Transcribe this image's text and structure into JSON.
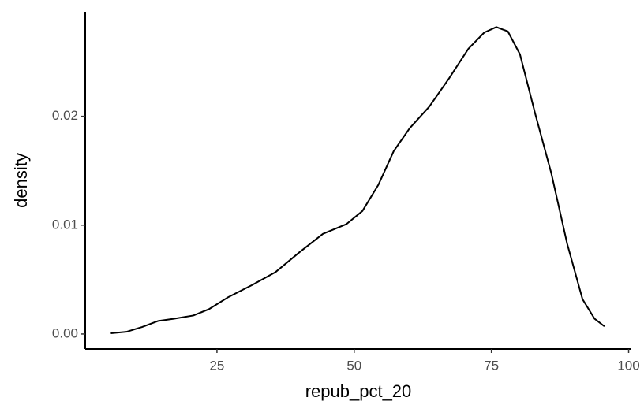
{
  "chart_data": {
    "type": "density",
    "x_label": "repub_pct_20",
    "y_label": "density",
    "x": [
      5.66,
      8.5,
      11.4,
      14.3,
      17.1,
      20.7,
      23.6,
      27.1,
      31.4,
      35.7,
      40.0,
      44.3,
      48.6,
      51.5,
      54.4,
      57.2,
      60.1,
      63.7,
      67.3,
      70.8,
      73.7,
      75.9,
      78.0,
      80.2,
      83.0,
      85.9,
      88.8,
      91.6,
      93.8,
      95.6
    ],
    "values": [
      7e-05,
      0.0002,
      0.00065,
      0.0012,
      0.0014,
      0.0017,
      0.0023,
      0.0034,
      0.0045,
      0.0057,
      0.0075,
      0.0092,
      0.0101,
      0.0113,
      0.0137,
      0.0168,
      0.0189,
      0.0209,
      0.0235,
      0.0262,
      0.0277,
      0.0282,
      0.0278,
      0.0257,
      0.0202,
      0.0148,
      0.0083,
      0.0032,
      0.0014,
      0.0007
    ],
    "color": "#000000",
    "xlim": [
      1.0,
      100.5
    ],
    "ylim": [
      -0.00138,
      0.0296
    ],
    "xticks": [
      25,
      50,
      75,
      100
    ],
    "yticks": [
      {
        "value": 0,
        "label": "0.00"
      },
      {
        "value": 0.01,
        "label": "0.01"
      },
      {
        "value": 0.02,
        "label": "0.02"
      }
    ]
  }
}
